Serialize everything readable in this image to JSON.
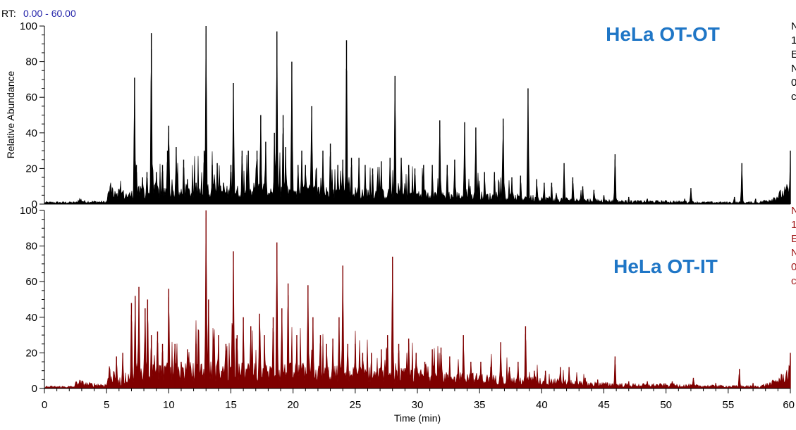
{
  "header": {
    "rt_label": "RT:",
    "rt_range": "0.00 - 60.00",
    "rt_color": "#1f1fa8"
  },
  "colors": {
    "title_blue": "#1f76c6",
    "top_trace": "#000000",
    "bottom_trace": "#7f0000",
    "bottom_side": "#a01818"
  },
  "chart_data": [
    {
      "type": "area",
      "title": "HeLa  OT-OT",
      "xlabel": "",
      "ylabel": "Relative Abundance",
      "xlim": [
        0,
        60
      ],
      "ylim": [
        0,
        100
      ],
      "yticks": [
        0,
        20,
        40,
        60,
        80,
        100
      ],
      "baseline": [
        [
          0,
          1
        ],
        [
          2.6,
          1
        ],
        [
          2.8,
          3
        ],
        [
          3.2,
          1.5
        ],
        [
          5.0,
          1.2
        ],
        [
          5.2,
          8
        ],
        [
          5.6,
          9
        ],
        [
          6.2,
          6
        ],
        [
          6.8,
          5
        ],
        [
          7.5,
          7
        ],
        [
          9,
          8
        ],
        [
          11,
          6
        ],
        [
          13,
          9
        ],
        [
          15,
          7
        ],
        [
          17,
          9
        ],
        [
          19,
          8
        ],
        [
          21,
          8
        ],
        [
          23,
          7
        ],
        [
          25,
          7
        ],
        [
          27,
          6
        ],
        [
          29,
          6
        ],
        [
          31,
          6
        ],
        [
          33,
          5
        ],
        [
          35,
          5
        ],
        [
          37,
          4
        ],
        [
          39,
          4
        ],
        [
          41,
          3
        ],
        [
          43,
          2.5
        ],
        [
          45,
          2
        ],
        [
          47,
          1.5
        ],
        [
          50,
          1.5
        ],
        [
          53,
          1
        ],
        [
          56,
          1
        ],
        [
          57.5,
          1
        ],
        [
          58.5,
          3
        ],
        [
          59.3,
          6
        ],
        [
          60,
          9
        ]
      ],
      "peaks": [
        [
          6.3,
          7
        ],
        [
          7.25,
          71
        ],
        [
          7.4,
          22
        ],
        [
          7.9,
          15
        ],
        [
          8.6,
          96
        ],
        [
          8.25,
          18
        ],
        [
          9.0,
          18
        ],
        [
          9.5,
          22
        ],
        [
          9.9,
          30
        ],
        [
          10.0,
          44
        ],
        [
          10.6,
          32
        ],
        [
          11.2,
          25
        ],
        [
          11.5,
          14
        ],
        [
          12.2,
          12
        ],
        [
          13.0,
          100
        ],
        [
          12.85,
          30
        ],
        [
          13.5,
          22
        ],
        [
          13.9,
          23
        ],
        [
          14.4,
          12
        ],
        [
          15.2,
          68
        ],
        [
          15.0,
          22
        ],
        [
          15.9,
          30
        ],
        [
          16.4,
          30
        ],
        [
          17.4,
          50
        ],
        [
          17.1,
          30
        ],
        [
          17.8,
          35
        ],
        [
          18.7,
          97
        ],
        [
          18.5,
          40
        ],
        [
          19.2,
          50
        ],
        [
          19.4,
          32
        ],
        [
          19.9,
          80
        ],
        [
          20.4,
          22
        ],
        [
          20.7,
          30
        ],
        [
          21.5,
          55
        ],
        [
          21.0,
          22
        ],
        [
          22.4,
          30
        ],
        [
          23.0,
          34
        ],
        [
          23.6,
          22
        ],
        [
          24.3,
          92
        ],
        [
          24.0,
          25
        ],
        [
          24.7,
          26
        ],
        [
          25.3,
          26
        ],
        [
          25.8,
          22
        ],
        [
          26.4,
          20
        ],
        [
          27.1,
          24
        ],
        [
          28.2,
          72
        ],
        [
          27.8,
          26
        ],
        [
          28.7,
          26
        ],
        [
          29.3,
          22
        ],
        [
          29.8,
          20
        ],
        [
          30.5,
          22
        ],
        [
          31.2,
          22
        ],
        [
          31.8,
          47
        ],
        [
          32.4,
          22
        ],
        [
          33.0,
          25
        ],
        [
          33.8,
          46
        ],
        [
          34.7,
          43
        ],
        [
          35.4,
          18
        ],
        [
          36.2,
          18
        ],
        [
          36.9,
          48
        ],
        [
          37.6,
          15
        ],
        [
          38.3,
          16
        ],
        [
          38.9,
          65
        ],
        [
          39.6,
          14
        ],
        [
          40.2,
          12
        ],
        [
          40.8,
          12
        ],
        [
          41.8,
          23
        ],
        [
          42.5,
          15
        ],
        [
          43.3,
          10
        ],
        [
          44.2,
          8
        ],
        [
          45.0,
          5
        ],
        [
          45.9,
          28
        ],
        [
          47.0,
          4
        ],
        [
          48.5,
          3
        ],
        [
          51.5,
          3
        ],
        [
          52.0,
          9
        ],
        [
          55.5,
          4
        ],
        [
          56.1,
          23
        ],
        [
          57.2,
          3
        ],
        [
          60.0,
          30
        ]
      ],
      "side_text": [
        "N",
        "1",
        "E",
        " N",
        "0",
        "c"
      ]
    },
    {
      "type": "area",
      "title": "HeLa  OT-IT",
      "xlabel": "Time (min)",
      "ylabel": "",
      "xlim": [
        0,
        60
      ],
      "ylim": [
        0,
        100
      ],
      "yticks": [
        0,
        20,
        40,
        60,
        80,
        100
      ],
      "xticks": [
        0,
        5,
        10,
        15,
        20,
        25,
        30,
        35,
        40,
        45,
        50,
        55,
        60
      ],
      "baseline": [
        [
          0,
          1
        ],
        [
          2.4,
          1
        ],
        [
          2.6,
          4
        ],
        [
          3.4,
          2.5
        ],
        [
          5.0,
          2
        ],
        [
          5.2,
          10
        ],
        [
          5.5,
          7
        ],
        [
          6.2,
          4
        ],
        [
          6.8,
          8
        ],
        [
          7.5,
          12
        ],
        [
          9,
          10
        ],
        [
          11,
          10
        ],
        [
          13,
          11
        ],
        [
          15,
          10
        ],
        [
          17,
          10
        ],
        [
          19,
          10
        ],
        [
          21,
          10
        ],
        [
          23,
          9
        ],
        [
          25,
          9
        ],
        [
          27,
          8
        ],
        [
          29,
          8
        ],
        [
          31,
          8
        ],
        [
          33,
          7
        ],
        [
          35,
          6
        ],
        [
          37,
          5
        ],
        [
          39,
          5
        ],
        [
          41,
          4
        ],
        [
          43,
          3
        ],
        [
          45,
          2.5
        ],
        [
          47,
          2
        ],
        [
          50,
          2
        ],
        [
          53,
          1.5
        ],
        [
          56,
          1.2
        ],
        [
          57.5,
          1.2
        ],
        [
          58.5,
          3
        ],
        [
          59.3,
          6
        ],
        [
          60,
          10
        ]
      ],
      "peaks": [
        [
          5.8,
          18
        ],
        [
          6.3,
          20
        ],
        [
          7.0,
          48
        ],
        [
          7.3,
          52
        ],
        [
          7.6,
          57
        ],
        [
          8.1,
          45
        ],
        [
          8.3,
          50
        ],
        [
          8.6,
          30
        ],
        [
          9.1,
          32
        ],
        [
          9.5,
          25
        ],
        [
          10.0,
          56
        ],
        [
          10.5,
          25
        ],
        [
          11.0,
          15
        ],
        [
          11.5,
          22
        ],
        [
          12.2,
          25
        ],
        [
          13.0,
          100
        ],
        [
          13.2,
          50
        ],
        [
          13.6,
          25
        ],
        [
          14.0,
          30
        ],
        [
          14.6,
          25
        ],
        [
          15.2,
          77
        ],
        [
          15.5,
          30
        ],
        [
          16.0,
          40
        ],
        [
          16.6,
          35
        ],
        [
          17.3,
          42
        ],
        [
          17.7,
          30
        ],
        [
          18.7,
          82
        ],
        [
          18.4,
          40
        ],
        [
          19.1,
          45
        ],
        [
          19.6,
          59
        ],
        [
          20.3,
          30
        ],
        [
          21.2,
          58
        ],
        [
          21.6,
          40
        ],
        [
          22.2,
          30
        ],
        [
          22.7,
          25
        ],
        [
          23.2,
          28
        ],
        [
          24.0,
          69
        ],
        [
          23.7,
          40
        ],
        [
          24.4,
          25
        ],
        [
          25.0,
          25
        ],
        [
          25.6,
          20
        ],
        [
          26.3,
          20
        ],
        [
          27.1,
          22
        ],
        [
          28.0,
          74
        ],
        [
          27.6,
          30
        ],
        [
          28.5,
          25
        ],
        [
          29.3,
          28
        ],
        [
          29.9,
          20
        ],
        [
          30.6,
          15
        ],
        [
          31.2,
          22
        ],
        [
          31.9,
          23
        ],
        [
          32.6,
          18
        ],
        [
          33.7,
          30
        ],
        [
          34.3,
          15
        ],
        [
          35.1,
          15
        ],
        [
          35.9,
          12
        ],
        [
          36.7,
          26
        ],
        [
          37.4,
          12
        ],
        [
          38.1,
          15
        ],
        [
          38.7,
          35
        ],
        [
          39.4,
          10
        ],
        [
          40.3,
          10
        ],
        [
          41.5,
          12
        ],
        [
          42.2,
          12
        ],
        [
          43.5,
          6
        ],
        [
          44.5,
          5
        ],
        [
          45.9,
          18
        ],
        [
          47.0,
          4
        ],
        [
          48.5,
          4
        ],
        [
          50.5,
          4
        ],
        [
          52.2,
          6
        ],
        [
          54.0,
          3
        ],
        [
          55.9,
          11
        ],
        [
          57.0,
          3
        ],
        [
          60.0,
          20
        ]
      ],
      "side_text": [
        "N",
        "1",
        "E",
        " N",
        "0",
        "c"
      ]
    }
  ]
}
